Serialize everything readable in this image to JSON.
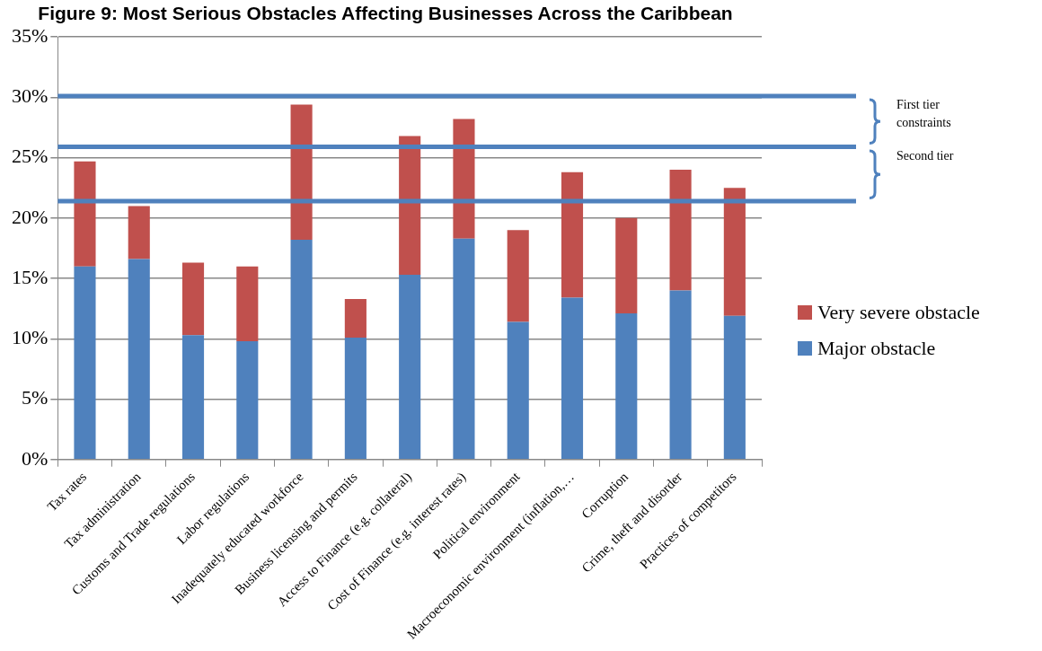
{
  "chart_data": {
    "type": "bar",
    "title": "Figure 9: Most Serious Obstacles Affecting Businesses Across the Caribbean",
    "categories": [
      "Tax rates",
      "Tax administration",
      "Customs and Trade regulations",
      "Labor regulations",
      "Inadequately educated workforce",
      "Business licensing and permits",
      "Access to Finance (e.g. collateral)",
      "Cost of Finance (e.g. interest rates)",
      "Political environment",
      "Macroeconomic environment (inflation,…",
      "Corruption",
      "Crime, theft and disorder",
      "Practices of competitors"
    ],
    "series": [
      {
        "name": "Major obstacle",
        "color": "#4f81bd",
        "values": [
          16.0,
          16.6,
          10.3,
          9.8,
          18.2,
          10.1,
          15.3,
          18.3,
          11.4,
          13.4,
          12.1,
          14.0,
          11.9
        ]
      },
      {
        "name": "Very severe obstacle",
        "color": "#c0504d",
        "values": [
          8.7,
          4.4,
          6.0,
          6.2,
          11.2,
          3.2,
          11.5,
          9.9,
          7.6,
          10.4,
          7.9,
          10.0,
          10.6
        ]
      }
    ],
    "stacked": true,
    "ylim": [
      0,
      35
    ],
    "yticks": [
      {
        "value": 0,
        "label": "0%"
      },
      {
        "value": 5,
        "label": "5%"
      },
      {
        "value": 10,
        "label": "10%"
      },
      {
        "value": 15,
        "label": "15%"
      },
      {
        "value": 20,
        "label": "20%"
      },
      {
        "value": 25,
        "label": "25%"
      },
      {
        "value": 30,
        "label": "30%"
      },
      {
        "value": 35,
        "label": "35%"
      }
    ],
    "grid": "y",
    "legend": "right",
    "ref_lines": [
      {
        "axis": "y",
        "value": 30.1,
        "color": "#4f81bd"
      },
      {
        "axis": "y",
        "value": 25.9,
        "color": "#4f81bd"
      },
      {
        "axis": "y",
        "value": 21.4,
        "color": "#4f81bd"
      }
    ],
    "annotations": [
      "First tier constraints",
      "Second tier"
    ]
  }
}
